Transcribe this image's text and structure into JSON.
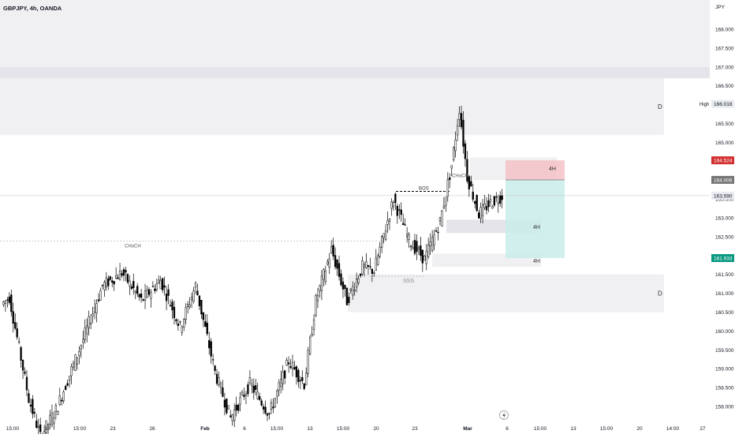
{
  "header": {
    "title": "GBPJPY, 4h, OANDA"
  },
  "colors": {
    "bg": "#ffffff",
    "zone": "#f0f0f3",
    "zone_dark": "#e4e4ea",
    "stop": "#f5c2c7",
    "target": "#c9ece9",
    "candle_up": "#ffffff",
    "candle_down": "#000000",
    "price_red": "#d32f2f",
    "price_teal": "#089981",
    "price_gray": "#757575"
  },
  "price_axis": {
    "currency": "JPY",
    "badges": {
      "high_label": "High",
      "high_value": "166.018",
      "stop_value": "164.524",
      "entry_value": "164.006",
      "last_value": "163.590",
      "target_value": "161.933"
    }
  },
  "annotations": {
    "choch_left": "CHoCH",
    "choch_right": "CHoCH",
    "bos": "BOS",
    "sss": "SSS",
    "zone_d_top": "D",
    "zone_d_bottom": "D",
    "zone_4h_stop": "4H",
    "zone_4h_mid": "4H",
    "zone_4h_low": "4H"
  },
  "chart_data": {
    "type": "candlestick",
    "title": "GBPJPY, 4h, OANDA",
    "ylim": [
      157.7,
      169.7
    ],
    "y_ticks": [
      158.0,
      158.5,
      159.0,
      159.5,
      160.0,
      160.5,
      161.0,
      161.5,
      162.0,
      162.5,
      163.0,
      163.5,
      164.0,
      164.5,
      165.0,
      165.5,
      166.0,
      166.5,
      167.0,
      167.5,
      168.0
    ],
    "x_tick_labels": [
      "15:00",
      "16",
      "15:00",
      "23",
      "26",
      "Feb",
      "6",
      "15:00",
      "13",
      "15:00",
      "20",
      "23",
      "Mar",
      "6",
      "15:00",
      "13",
      "15:00",
      "20",
      "14:00",
      "27"
    ],
    "zones": [
      {
        "label": "D",
        "from": 166.7,
        "to": 165.2
      },
      {
        "label": "",
        "from": 167.0,
        "to": 166.7
      },
      {
        "label": "D",
        "from": 161.5,
        "to": 160.5
      },
      {
        "label": "4H",
        "from": 164.6,
        "to": 164.0
      },
      {
        "label": "4H",
        "from": 162.95,
        "to": 162.6
      },
      {
        "label": "4H",
        "from": 162.05,
        "to": 161.7
      }
    ],
    "position": {
      "stop": 164.524,
      "entry": 164.006,
      "target": 161.933
    },
    "levels": {
      "high": 166.018,
      "last": 163.59,
      "choch": 162.38,
      "bos": 163.7
    },
    "anchors": [
      {
        "i": 0,
        "p": 160.7
      },
      {
        "i": 4,
        "p": 160.9
      },
      {
        "i": 14,
        "p": 158.2
      },
      {
        "i": 20,
        "p": 157.2
      },
      {
        "i": 28,
        "p": 157.9
      },
      {
        "i": 40,
        "p": 159.5
      },
      {
        "i": 52,
        "p": 161.2
      },
      {
        "i": 62,
        "p": 161.55
      },
      {
        "i": 72,
        "p": 160.8
      },
      {
        "i": 82,
        "p": 161.35
      },
      {
        "i": 92,
        "p": 160.1
      },
      {
        "i": 100,
        "p": 161.2
      },
      {
        "i": 110,
        "p": 158.9
      },
      {
        "i": 118,
        "p": 157.7
      },
      {
        "i": 128,
        "p": 158.6
      },
      {
        "i": 138,
        "p": 157.8
      },
      {
        "i": 148,
        "p": 159.2
      },
      {
        "i": 156,
        "p": 158.6
      },
      {
        "i": 162,
        "p": 160.8
      },
      {
        "i": 170,
        "p": 162.15
      },
      {
        "i": 178,
        "p": 160.8
      },
      {
        "i": 186,
        "p": 161.7
      },
      {
        "i": 192,
        "p": 161.6
      },
      {
        "i": 202,
        "p": 163.5
      },
      {
        "i": 210,
        "p": 162.4
      },
      {
        "i": 218,
        "p": 161.9
      },
      {
        "i": 226,
        "p": 162.9
      },
      {
        "i": 232,
        "p": 164.4
      },
      {
        "i": 236,
        "p": 165.9
      },
      {
        "i": 240,
        "p": 164.1
      },
      {
        "i": 246,
        "p": 163.1
      },
      {
        "i": 252,
        "p": 163.4
      },
      {
        "i": 258,
        "p": 163.59
      }
    ]
  }
}
